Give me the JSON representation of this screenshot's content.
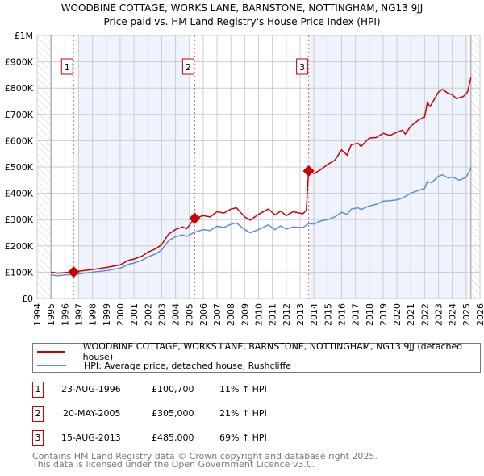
{
  "chart_data": {
    "type": "line",
    "title": "WOODBINE COTTAGE, WORKS LANE, BARNSTONE, NOTTINGHAM, NG13 9JJ",
    "subtitle": "Price paid vs. HM Land Registry's House Price Index (HPI)",
    "xlim": [
      1994,
      2026
    ],
    "ylim": [
      0,
      1000000
    ],
    "x_ticks": [
      "1994",
      "1995",
      "1996",
      "1997",
      "1998",
      "1999",
      "2000",
      "2001",
      "2002",
      "2003",
      "2004",
      "2005",
      "2006",
      "2007",
      "2008",
      "2009",
      "2010",
      "2011",
      "2012",
      "2013",
      "2014",
      "2015",
      "2016",
      "2017",
      "2018",
      "2019",
      "2020",
      "2021",
      "2022",
      "2023",
      "2024",
      "2025",
      "2026"
    ],
    "y_ticks": [
      {
        "v": 0,
        "label": "£0"
      },
      {
        "v": 100000,
        "label": "£100K"
      },
      {
        "v": 200000,
        "label": "£200K"
      },
      {
        "v": 300000,
        "label": "£300K"
      },
      {
        "v": 400000,
        "label": "£400K"
      },
      {
        "v": 500000,
        "label": "£500K"
      },
      {
        "v": 600000,
        "label": "£600K"
      },
      {
        "v": 700000,
        "label": "£700K"
      },
      {
        "v": 800000,
        "label": "£800K"
      },
      {
        "v": 900000,
        "label": "£900K"
      },
      {
        "v": 1000000,
        "label": "£1M"
      }
    ],
    "grid": true,
    "colors": {
      "property": "#cc0000",
      "hpi": "#5b8fd6",
      "shade": "#eef3fd"
    },
    "series": [
      {
        "name": "WOODBINE COTTAGE, WORKS LANE, BARNSTONE, NOTTINGHAM, NG13 9JJ (detached house)",
        "points": [
          [
            1995,
            100000
          ],
          [
            1995.5,
            96000
          ],
          [
            1996,
            98000
          ],
          [
            1996.64,
            100700
          ],
          [
            1997,
            104000
          ],
          [
            1998,
            110000
          ],
          [
            1999,
            118000
          ],
          [
            2000,
            128000
          ],
          [
            2000.6,
            145000
          ],
          [
            2001,
            150000
          ],
          [
            2001.6,
            162000
          ],
          [
            2002,
            176000
          ],
          [
            2002.6,
            190000
          ],
          [
            2003,
            205000
          ],
          [
            2003.5,
            245000
          ],
          [
            2004,
            262000
          ],
          [
            2004.5,
            272000
          ],
          [
            2004.8,
            265000
          ],
          [
            2005.39,
            305000
          ],
          [
            2006,
            315000
          ],
          [
            2006.5,
            310000
          ],
          [
            2007,
            330000
          ],
          [
            2007.5,
            325000
          ],
          [
            2008,
            340000
          ],
          [
            2008.4,
            345000
          ],
          [
            2009,
            310000
          ],
          [
            2009.4,
            298000
          ],
          [
            2010,
            320000
          ],
          [
            2010.7,
            340000
          ],
          [
            2011.2,
            318000
          ],
          [
            2011.6,
            332000
          ],
          [
            2012,
            315000
          ],
          [
            2012.5,
            330000
          ],
          [
            2013.2,
            322000
          ],
          [
            2013.45,
            335000
          ],
          [
            2013.62,
            485000
          ],
          [
            2014,
            475000
          ],
          [
            2014.5,
            490000
          ],
          [
            2015,
            510000
          ],
          [
            2015.5,
            525000
          ],
          [
            2016,
            565000
          ],
          [
            2016.4,
            545000
          ],
          [
            2016.7,
            585000
          ],
          [
            2017.2,
            590000
          ],
          [
            2017.4,
            578000
          ],
          [
            2018,
            610000
          ],
          [
            2018.5,
            612000
          ],
          [
            2019,
            628000
          ],
          [
            2019.5,
            620000
          ],
          [
            2020,
            632000
          ],
          [
            2020.4,
            640000
          ],
          [
            2020.6,
            625000
          ],
          [
            2021,
            655000
          ],
          [
            2021.6,
            680000
          ],
          [
            2022,
            690000
          ],
          [
            2022.2,
            745000
          ],
          [
            2022.4,
            730000
          ],
          [
            2023,
            785000
          ],
          [
            2023.3,
            795000
          ],
          [
            2023.7,
            780000
          ],
          [
            2024,
            775000
          ],
          [
            2024.3,
            760000
          ],
          [
            2024.8,
            768000
          ],
          [
            2025.1,
            785000
          ],
          [
            2025.35,
            840000
          ]
        ]
      },
      {
        "name": "HPI: Average price, detached house, Rushcliffe",
        "points": [
          [
            1995,
            90000
          ],
          [
            1995.5,
            86000
          ],
          [
            1996,
            90000
          ],
          [
            1996.64,
            90500
          ],
          [
            1997,
            93000
          ],
          [
            1998,
            100000
          ],
          [
            1999,
            106000
          ],
          [
            2000,
            115000
          ],
          [
            2000.6,
            130000
          ],
          [
            2001,
            135000
          ],
          [
            2001.6,
            146000
          ],
          [
            2002,
            158000
          ],
          [
            2002.6,
            170000
          ],
          [
            2003,
            185000
          ],
          [
            2003.5,
            220000
          ],
          [
            2004,
            235000
          ],
          [
            2004.5,
            242000
          ],
          [
            2004.8,
            236000
          ],
          [
            2005.39,
            252000
          ],
          [
            2006,
            262000
          ],
          [
            2006.5,
            258000
          ],
          [
            2007,
            275000
          ],
          [
            2007.5,
            270000
          ],
          [
            2008,
            282000
          ],
          [
            2008.4,
            288000
          ],
          [
            2009,
            262000
          ],
          [
            2009.4,
            250000
          ],
          [
            2010,
            262000
          ],
          [
            2010.7,
            280000
          ],
          [
            2011.2,
            262000
          ],
          [
            2011.6,
            276000
          ],
          [
            2012,
            264000
          ],
          [
            2012.5,
            272000
          ],
          [
            2013.2,
            270000
          ],
          [
            2013.62,
            285000
          ],
          [
            2014,
            283000
          ],
          [
            2014.5,
            295000
          ],
          [
            2015,
            300000
          ],
          [
            2015.5,
            310000
          ],
          [
            2016,
            328000
          ],
          [
            2016.4,
            320000
          ],
          [
            2016.7,
            340000
          ],
          [
            2017.2,
            345000
          ],
          [
            2017.4,
            338000
          ],
          [
            2018,
            352000
          ],
          [
            2018.5,
            358000
          ],
          [
            2019,
            370000
          ],
          [
            2019.5,
            372000
          ],
          [
            2020,
            375000
          ],
          [
            2020.4,
            382000
          ],
          [
            2021,
            400000
          ],
          [
            2021.6,
            412000
          ],
          [
            2022,
            418000
          ],
          [
            2022.2,
            445000
          ],
          [
            2022.5,
            440000
          ],
          [
            2023,
            465000
          ],
          [
            2023.3,
            470000
          ],
          [
            2023.7,
            458000
          ],
          [
            2024,
            462000
          ],
          [
            2024.5,
            450000
          ],
          [
            2025,
            460000
          ],
          [
            2025.35,
            498000
          ]
        ]
      }
    ],
    "sales": [
      {
        "label": "1",
        "x": 1996.64,
        "y": 100700
      },
      {
        "label": "2",
        "x": 2005.39,
        "y": 305000
      },
      {
        "label": "3",
        "x": 2013.62,
        "y": 485000
      }
    ],
    "shaded_ranges": [
      [
        1997,
        2005.0
      ],
      [
        2013.62,
        2025.35
      ]
    ],
    "hatched_ranges": [
      [
        1994,
        1995
      ],
      [
        2025.35,
        2026
      ]
    ]
  },
  "header": {
    "title": "WOODBINE COTTAGE, WORKS LANE, BARNSTONE, NOTTINGHAM, NG13 9JJ",
    "subtitle": "Price paid vs. HM Land Registry's House Price Index (HPI)"
  },
  "legend": {
    "property": "WOODBINE COTTAGE, WORKS LANE, BARNSTONE, NOTTINGHAM, NG13 9JJ (detached house)",
    "hpi": "HPI: Average price, detached house, Rushcliffe"
  },
  "transactions": [
    {
      "num": "1",
      "date": "23-AUG-1996",
      "price": "£100,700",
      "hpi": "11% ↑ HPI"
    },
    {
      "num": "2",
      "date": "20-MAY-2005",
      "price": "£305,000",
      "hpi": "21% ↑ HPI"
    },
    {
      "num": "3",
      "date": "15-AUG-2013",
      "price": "£485,000",
      "hpi": "69% ↑ HPI"
    }
  ],
  "footer": {
    "line1": "Contains HM Land Registry data © Crown copyright and database right 2025.",
    "line2": "This data is licensed under the Open Government Licence v3.0."
  }
}
